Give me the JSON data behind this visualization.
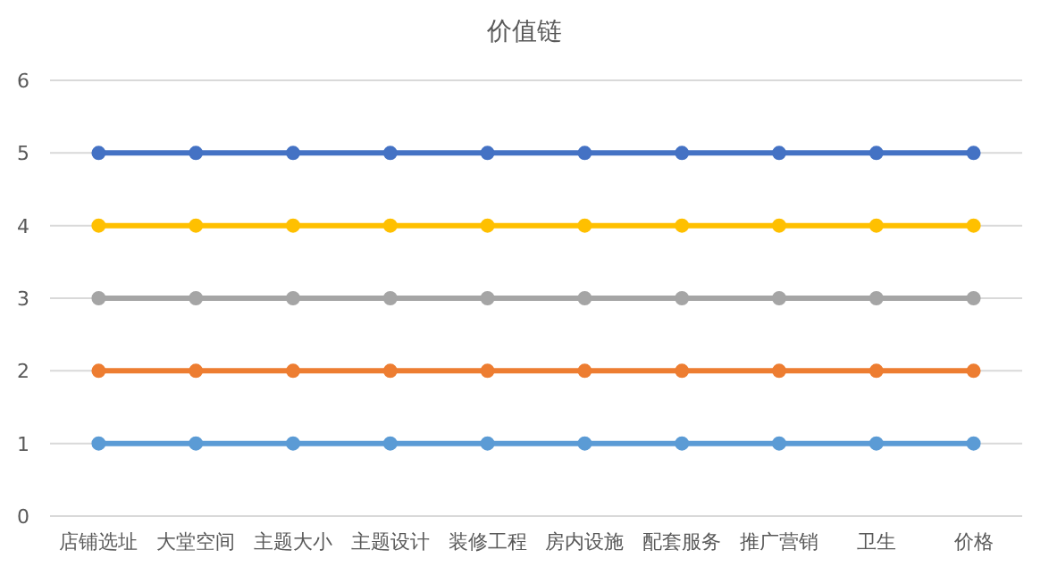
{
  "chart_data": {
    "type": "line",
    "title": "价值链",
    "categories": [
      "店铺选址",
      "大堂空间",
      "主题大小",
      "主题设计",
      "装修工程",
      "房内设施",
      "配套服务",
      "推广营销",
      "卫生",
      "价格"
    ],
    "series": [
      {
        "color": "#5b9bd5",
        "values": [
          1,
          1,
          1,
          1,
          1,
          1,
          1,
          1,
          1,
          1
        ]
      },
      {
        "color": "#ed7d31",
        "values": [
          2,
          2,
          2,
          2,
          2,
          2,
          2,
          2,
          2,
          2
        ]
      },
      {
        "color": "#a5a5a5",
        "values": [
          3,
          3,
          3,
          3,
          3,
          3,
          3,
          3,
          3,
          3
        ]
      },
      {
        "color": "#ffc000",
        "values": [
          4,
          4,
          4,
          4,
          4,
          4,
          4,
          4,
          4,
          4
        ]
      },
      {
        "color": "#4472c4",
        "values": [
          5,
          5,
          5,
          5,
          5,
          5,
          5,
          5,
          5,
          5
        ]
      }
    ],
    "ylim": [
      0,
      6
    ],
    "yticks": [
      0,
      1,
      2,
      3,
      4,
      5,
      6
    ],
    "grid": "y",
    "marker": "circle",
    "line_style": "solid"
  }
}
